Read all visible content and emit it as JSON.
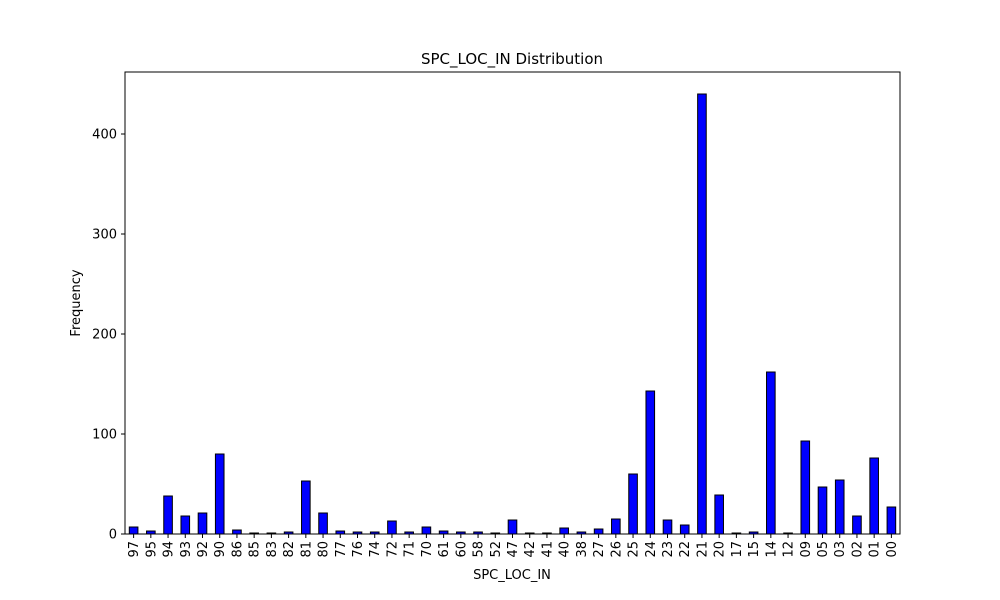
{
  "chart_data": {
    "type": "bar",
    "title": "SPC_LOC_IN Distribution",
    "xlabel": "SPC_LOC_IN",
    "ylabel": "Frequency",
    "categories": [
      "97",
      "95",
      "94",
      "93",
      "92",
      "90",
      "86",
      "85",
      "83",
      "82",
      "81",
      "80",
      "77",
      "76",
      "74",
      "72",
      "71",
      "70",
      "61",
      "60",
      "58",
      "52",
      "47",
      "42",
      "41",
      "40",
      "38",
      "27",
      "26",
      "25",
      "24",
      "23",
      "22",
      "21",
      "20",
      "17",
      "15",
      "14",
      "12",
      "09",
      "05",
      "03",
      "02",
      "01",
      "00"
    ],
    "values": [
      7,
      3,
      38,
      18,
      21,
      80,
      4,
      1,
      1,
      2,
      53,
      21,
      3,
      2,
      2,
      13,
      2,
      7,
      3,
      2,
      2,
      1,
      14,
      1,
      1,
      6,
      2,
      5,
      15,
      60,
      143,
      14,
      9,
      440,
      39,
      1,
      2,
      162,
      1,
      93,
      47,
      54,
      18,
      76,
      27
    ],
    "ylim": [
      0,
      462
    ],
    "yticks": [
      0,
      100,
      200,
      300,
      400
    ],
    "grid": false,
    "bar_color": "#0000ff",
    "edge_color": "#000000"
  }
}
